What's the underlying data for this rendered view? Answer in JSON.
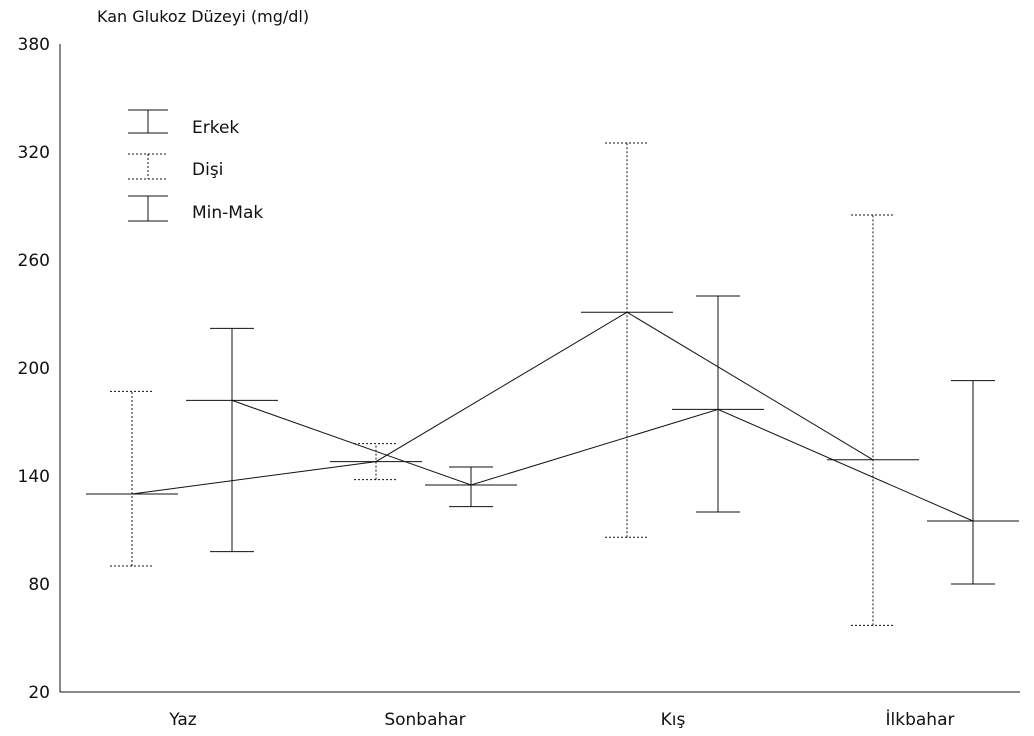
{
  "chart_data": {
    "type": "line",
    "ylabel": "Kan Glukoz Düzeyi (mg/dl)",
    "xlabel": "",
    "ylim": [
      20,
      380
    ],
    "yticks": [
      20,
      80,
      140,
      200,
      260,
      320,
      380
    ],
    "categories": [
      "Yaz",
      "Sonbahar",
      "Kış",
      "İlkbahar"
    ],
    "grid": false,
    "legend": {
      "position": "top-left",
      "entries": [
        {
          "label": "Erkek",
          "style": "solid"
        },
        {
          "label": "Dişi",
          "style": "dotted"
        },
        {
          "label": "Min-Mak",
          "style": "solid"
        }
      ]
    },
    "series": [
      {
        "name": "Erkek",
        "style": "solid",
        "values": [
          182,
          135,
          177,
          115
        ],
        "min": [
          98,
          123,
          120,
          80
        ],
        "max": [
          222,
          145,
          240,
          193
        ]
      },
      {
        "name": "Dişi",
        "style": "dotted",
        "values": [
          130,
          148,
          231,
          149
        ],
        "min": [
          90,
          138,
          106,
          57
        ],
        "max": [
          187,
          158,
          325,
          285
        ]
      }
    ]
  }
}
